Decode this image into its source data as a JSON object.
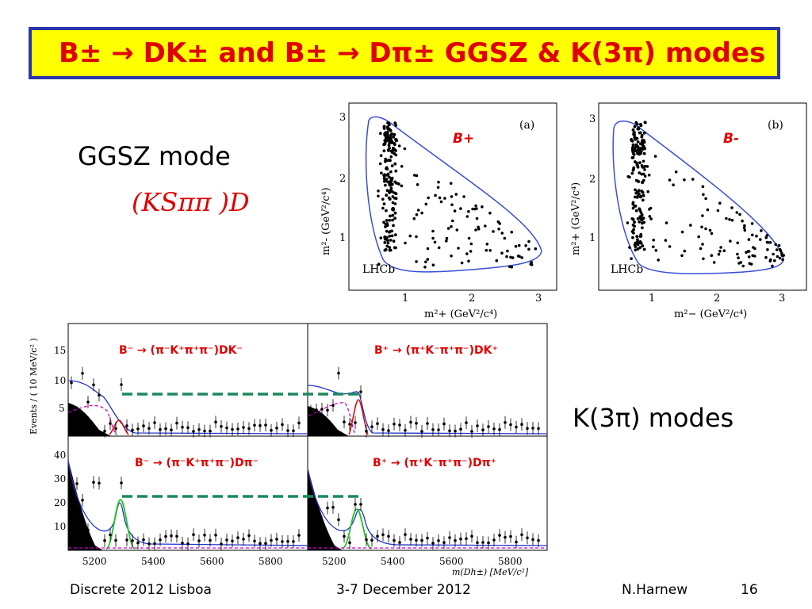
{
  "title": "B± → DK± and B± → Dπ±  GGSZ & K(3π) modes",
  "left_text": {
    "ggsz_mode": "GGSZ mode",
    "kspp": "(KSππ )D"
  },
  "k3pi_label": "K(3π) modes",
  "footer": {
    "conference": "Discrete 2012 Lisboa",
    "date": "3-7 December 2012",
    "author": "N.Harnew",
    "page": "16"
  },
  "dalitz": {
    "plot_a": {
      "label": "B+",
      "tag": "(a)",
      "watermark": "LHCb",
      "xlabel": "m²+ (GeV²/c⁴)",
      "ylabel": "m²- (GeV²/c⁴)",
      "xticks": [
        "1",
        "2",
        "3"
      ],
      "yticks": [
        "1",
        "2",
        "3"
      ]
    },
    "plot_b": {
      "label": "B-",
      "tag": "(b)",
      "watermark": "LHCb",
      "xlabel": "m²− (GeV²/c⁴)",
      "ylabel": "m²+ (GeV²/c⁴)",
      "xticks": [
        "1",
        "2",
        "3"
      ],
      "yticks": [
        "1",
        "2",
        "3"
      ]
    }
  },
  "mass_fits": {
    "ylabel": "Events / ( 10 MeV/c² )",
    "xlabel": "m(Dh±) [MeV/c²]",
    "xticks": [
      "5200",
      "5400",
      "5600",
      "5800"
    ],
    "top_yticks": [
      "5",
      "10",
      "15"
    ],
    "bottom_yticks": [
      "10",
      "20",
      "30",
      "40"
    ],
    "panels": [
      {
        "label": "B⁻ → (π⁻K⁺π⁺π⁻)DK⁻"
      },
      {
        "label": "B⁺ → (π⁺K⁻π⁺π⁻)DK⁺"
      },
      {
        "label": "B⁻ → (π⁻K⁺π⁺π⁻)Dπ⁻"
      },
      {
        "label": "B⁺ → (π⁺K⁻π⁺π⁻)Dπ⁺"
      }
    ]
  },
  "colors": {
    "title_bg": "#ffff00",
    "title_border": "#2a35a8",
    "title_text": "#e00000",
    "boundary": "#3a4ed8",
    "dashed": "#1a8a5a"
  }
}
